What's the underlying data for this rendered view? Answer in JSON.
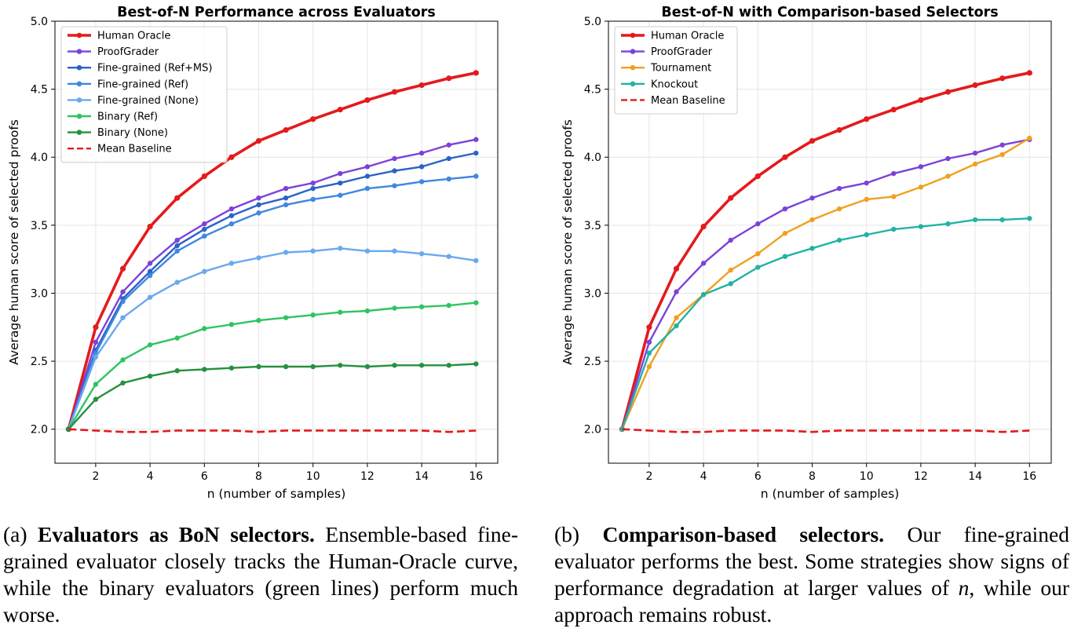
{
  "chart_data": [
    {
      "type": "line",
      "title": "Best-of-N Performance across Evaluators",
      "xlabel": "n (number of samples)",
      "ylabel": "Average human score of selected proofs",
      "xlim": [
        0.5,
        16.8
      ],
      "ylim": [
        1.75,
        5.0
      ],
      "xticks": [
        2,
        4,
        6,
        8,
        10,
        12,
        14,
        16
      ],
      "yticks": [
        2.0,
        2.5,
        3.0,
        3.5,
        4.0,
        4.5,
        5.0
      ],
      "grid": true,
      "legend_position": "upper left",
      "x": [
        1,
        2,
        3,
        4,
        5,
        6,
        7,
        8,
        9,
        10,
        11,
        12,
        13,
        14,
        15,
        16
      ],
      "series": [
        {
          "name": "Human Oracle",
          "color": "#e41a1c",
          "thick": true,
          "values": [
            2.0,
            2.75,
            3.18,
            3.49,
            3.7,
            3.86,
            4.0,
            4.12,
            4.2,
            4.28,
            4.35,
            4.42,
            4.48,
            4.53,
            4.58,
            4.62
          ]
        },
        {
          "name": "ProofGrader",
          "color": "#7b42d8",
          "values": [
            2.0,
            2.64,
            3.01,
            3.22,
            3.39,
            3.51,
            3.62,
            3.7,
            3.77,
            3.81,
            3.88,
            3.93,
            3.99,
            4.03,
            4.09,
            4.13
          ]
        },
        {
          "name": "Fine-grained (Ref+MS)",
          "color": "#2a62c9",
          "values": [
            2.0,
            2.58,
            2.96,
            3.16,
            3.35,
            3.47,
            3.57,
            3.65,
            3.7,
            3.77,
            3.81,
            3.86,
            3.9,
            3.93,
            3.99,
            4.03
          ]
        },
        {
          "name": "Fine-grained (Ref)",
          "color": "#3f87e0",
          "values": [
            2.0,
            2.56,
            2.94,
            3.13,
            3.31,
            3.42,
            3.51,
            3.59,
            3.65,
            3.69,
            3.72,
            3.77,
            3.79,
            3.82,
            3.84,
            3.86
          ]
        },
        {
          "name": "Fine-grained (None)",
          "color": "#6aa9ec",
          "values": [
            2.0,
            2.53,
            2.82,
            2.97,
            3.08,
            3.16,
            3.22,
            3.26,
            3.3,
            3.31,
            3.33,
            3.31,
            3.31,
            3.29,
            3.27,
            3.24
          ]
        },
        {
          "name": "Binary (Ref)",
          "color": "#2fc462",
          "values": [
            2.0,
            2.33,
            2.51,
            2.62,
            2.67,
            2.74,
            2.77,
            2.8,
            2.82,
            2.84,
            2.86,
            2.87,
            2.89,
            2.9,
            2.91,
            2.93
          ]
        },
        {
          "name": "Binary (None)",
          "color": "#25913f",
          "values": [
            2.0,
            2.22,
            2.34,
            2.39,
            2.43,
            2.44,
            2.45,
            2.46,
            2.46,
            2.46,
            2.47,
            2.46,
            2.47,
            2.47,
            2.47,
            2.48
          ]
        },
        {
          "name": "Mean Baseline",
          "color": "#e41a1c",
          "dashed": true,
          "values": [
            2.0,
            1.99,
            1.98,
            1.98,
            1.99,
            1.99,
            1.99,
            1.98,
            1.99,
            1.99,
            1.99,
            1.99,
            1.99,
            1.99,
            1.98,
            1.99
          ]
        }
      ]
    },
    {
      "type": "line",
      "title": "Best-of-N with Comparison-based Selectors",
      "xlabel": "n (number of samples)",
      "ylabel": "Average human score of selected proofs",
      "xlim": [
        0.5,
        16.8
      ],
      "ylim": [
        1.75,
        5.0
      ],
      "xticks": [
        2,
        4,
        6,
        8,
        10,
        12,
        14,
        16
      ],
      "yticks": [
        2.0,
        2.5,
        3.0,
        3.5,
        4.0,
        4.5,
        5.0
      ],
      "grid": true,
      "legend_position": "upper left",
      "x": [
        1,
        2,
        3,
        4,
        5,
        6,
        7,
        8,
        9,
        10,
        11,
        12,
        13,
        14,
        15,
        16
      ],
      "series": [
        {
          "name": "Human Oracle",
          "color": "#e41a1c",
          "thick": true,
          "values": [
            2.0,
            2.75,
            3.18,
            3.49,
            3.7,
            3.86,
            4.0,
            4.12,
            4.2,
            4.28,
            4.35,
            4.42,
            4.48,
            4.53,
            4.58,
            4.62
          ]
        },
        {
          "name": "ProofGrader",
          "color": "#7b42d8",
          "values": [
            2.0,
            2.64,
            3.01,
            3.22,
            3.39,
            3.51,
            3.62,
            3.7,
            3.77,
            3.81,
            3.88,
            3.93,
            3.99,
            4.03,
            4.09,
            4.13
          ]
        },
        {
          "name": "Tournament",
          "color": "#f0a020",
          "values": [
            2.0,
            2.46,
            2.82,
            2.99,
            3.17,
            3.29,
            3.44,
            3.54,
            3.62,
            3.69,
            3.71,
            3.78,
            3.86,
            3.95,
            4.02,
            4.14
          ]
        },
        {
          "name": "Knockout",
          "color": "#21b3a5",
          "values": [
            2.0,
            2.56,
            2.76,
            2.99,
            3.07,
            3.19,
            3.27,
            3.33,
            3.39,
            3.43,
            3.47,
            3.49,
            3.51,
            3.54,
            3.54,
            3.55
          ]
        },
        {
          "name": "Mean Baseline",
          "color": "#e41a1c",
          "dashed": true,
          "values": [
            2.0,
            1.99,
            1.98,
            1.98,
            1.99,
            1.99,
            1.99,
            1.98,
            1.99,
            1.99,
            1.99,
            1.99,
            1.99,
            1.99,
            1.98,
            1.99
          ]
        }
      ]
    }
  ],
  "captions": [
    {
      "label": "(a)",
      "bold": "Evaluators as BoN selectors.",
      "text": "Ensemble-based fine-grained evaluator closely tracks the Human-Oracle curve, while the binary evaluators (green lines) perform much worse."
    },
    {
      "label": "(b)",
      "bold": "Comparison-based selectors.",
      "text": "Our fine-grained evaluator performs the best. Some strategies show signs of performance degradation at larger values of",
      "math": "n",
      "tail": ", while our approach remains robust."
    }
  ]
}
